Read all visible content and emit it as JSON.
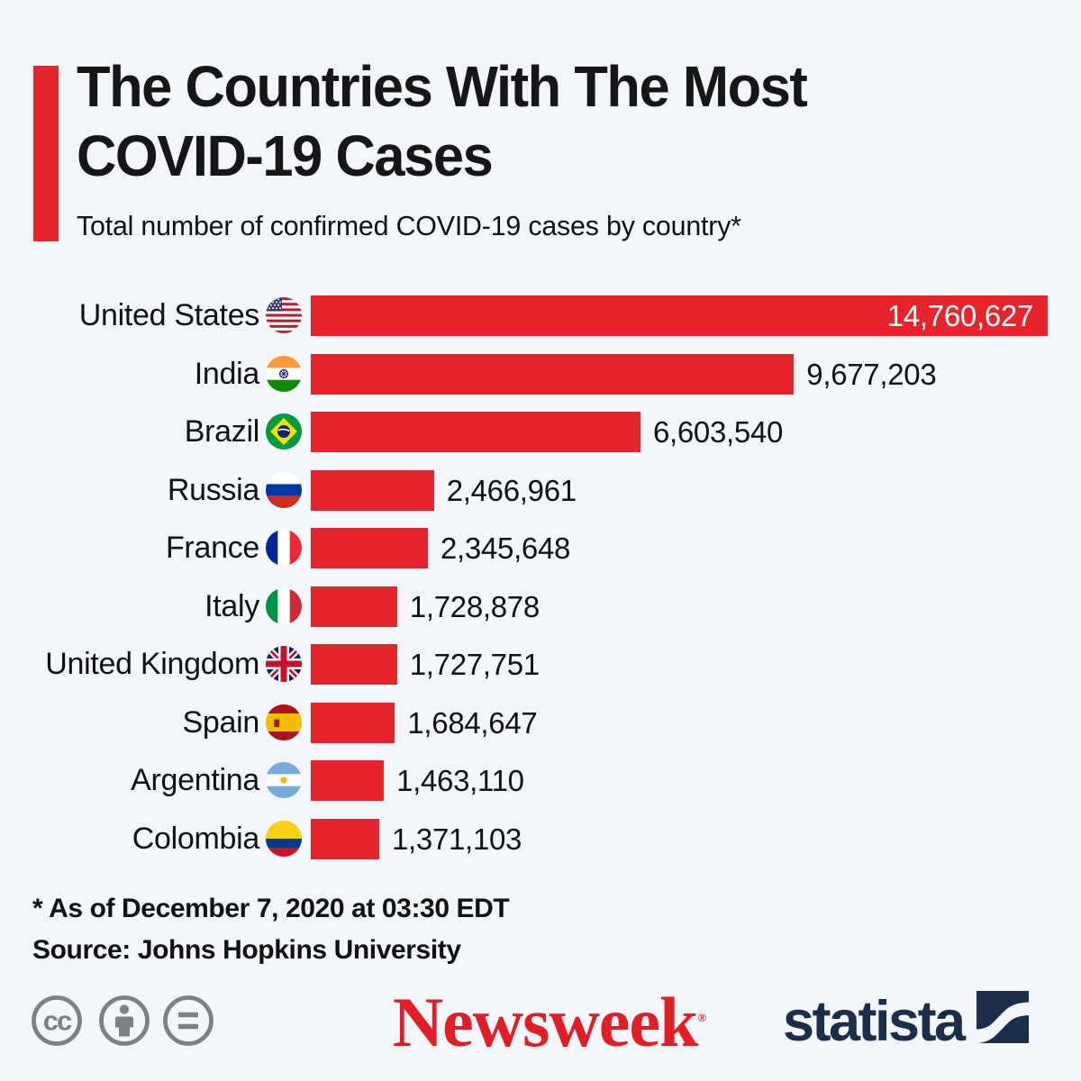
{
  "header": {
    "title_line1": "The Countries With The Most",
    "title_line2": "COVID-19 Cases",
    "subtitle": "Total number of confirmed COVID-19 cases by country*",
    "accent_color": "#e7242c"
  },
  "chart_data": {
    "type": "bar",
    "orientation": "horizontal",
    "title": "The Countries With The Most COVID-19 Cases",
    "subtitle": "Total number of confirmed COVID-19 cases by country*",
    "categories": [
      "United States",
      "India",
      "Brazil",
      "Russia",
      "France",
      "Italy",
      "United Kingdom",
      "Spain",
      "Argentina",
      "Colombia"
    ],
    "values": [
      14760627,
      9677203,
      6603540,
      2466961,
      2345648,
      1728878,
      1727751,
      1684647,
      1463110,
      1371103
    ],
    "value_labels": [
      "14,760,627",
      "9,677,203",
      "6,603,540",
      "2,466,961",
      "2,345,648",
      "1,728,878",
      "1,727,751",
      "1,684,647",
      "1,463,110",
      "1,371,103"
    ],
    "flags": [
      "flag-united-states",
      "flag-india",
      "flag-brazil",
      "flag-russia",
      "flag-france",
      "flag-italy",
      "flag-united-kingdom",
      "flag-spain",
      "flag-argentina",
      "flag-colombia"
    ],
    "bar_color": "#e7242c",
    "xlim": [
      0,
      14760627
    ],
    "grid": false,
    "legend": false,
    "value_label_inside_for_max": true
  },
  "footnote": {
    "asterisk_note": "* As of December 7, 2020 at 03:30 EDT",
    "source": "Source: Johns Hopkins University"
  },
  "footer": {
    "license_icons": [
      "cc-icon",
      "person-icon",
      "equals-icon"
    ],
    "license_icon_color": "#7c8186",
    "newsweek_logo_text": "Newsweek",
    "newsweek_reg_mark": "®",
    "newsweek_color": "#e11d26",
    "statista_logo_text": "statista",
    "statista_color": "#1b2e49"
  }
}
